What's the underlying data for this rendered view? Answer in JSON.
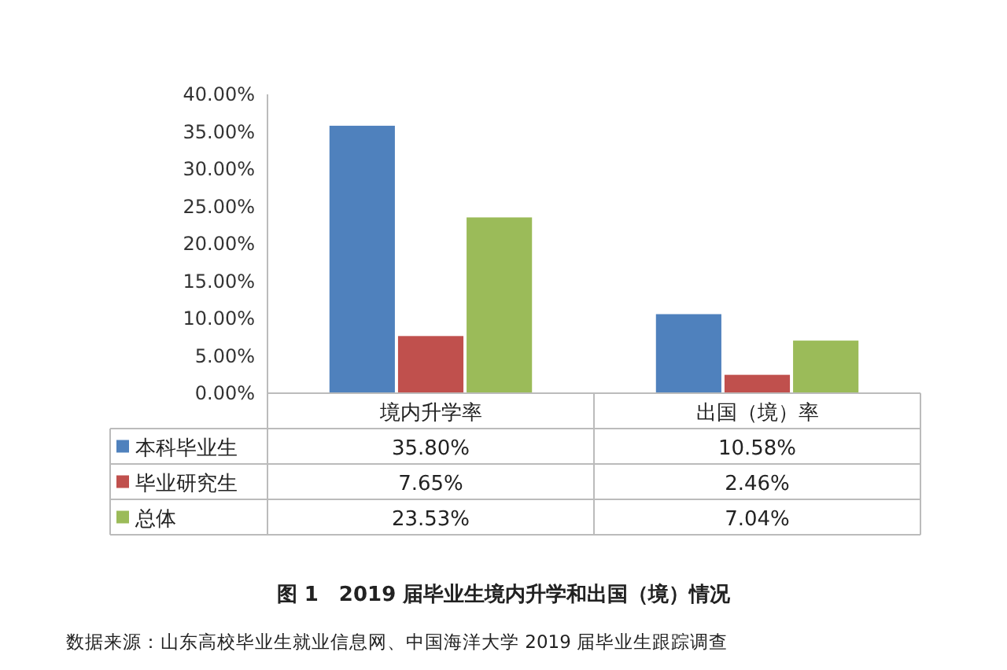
{
  "chart_data": {
    "type": "bar",
    "title": "图 1　2019 届毕业生境内升学和出国（境）情况",
    "categories": [
      "境内升学率",
      "出国（境）率"
    ],
    "series": [
      {
        "name": "本科毕业生",
        "color": "#4f81bd",
        "values": [
          35.8,
          10.58
        ],
        "value_labels": [
          "35.80%",
          "10.58%"
        ]
      },
      {
        "name": "毕业研究生",
        "color": "#c0504d",
        "values": [
          7.65,
          2.46
        ],
        "value_labels": [
          "7.65%",
          "2.46%"
        ]
      },
      {
        "name": "总体",
        "color": "#9bbb59",
        "values": [
          23.53,
          7.04
        ],
        "value_labels": [
          "23.53%",
          "7.04%"
        ]
      }
    ],
    "ylim": [
      0,
      40
    ],
    "yticks": [
      {
        "value": 0,
        "label": "0.00%"
      },
      {
        "value": 5,
        "label": "5.00%"
      },
      {
        "value": 10,
        "label": "10.00%"
      },
      {
        "value": 15,
        "label": "15.00%"
      },
      {
        "value": 20,
        "label": "20.00%"
      },
      {
        "value": 25,
        "label": "25.00%"
      },
      {
        "value": 30,
        "label": "30.00%"
      },
      {
        "value": 35,
        "label": "35.00%"
      },
      {
        "value": 40,
        "label": "40.00%"
      }
    ],
    "grid": false,
    "legend": "bottom left",
    "annotations": [
      "数据来源：山东高校毕业生就业信息网、中国海洋大学 2019 届毕业生跟踪调查"
    ]
  }
}
